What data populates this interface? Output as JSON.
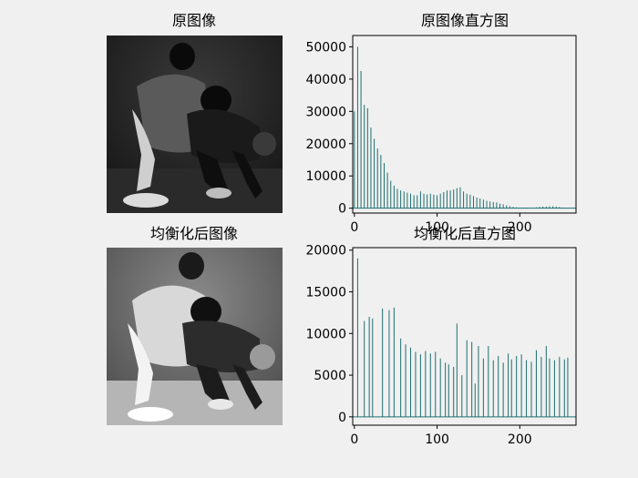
{
  "figure": {
    "background": "#f0f0f0",
    "bar_color": "#1f6f6f"
  },
  "images": [
    {
      "title": "原图像",
      "description_icon": "basketball-photo-dark"
    },
    {
      "title": "均衡化后图像",
      "description_icon": "basketball-photo-equalized"
    }
  ],
  "chart_data": [
    {
      "type": "bar",
      "title": "原图像直方图",
      "xlim": [
        -2,
        268
      ],
      "ylim": [
        -1500,
        53500
      ],
      "xticks": [
        0,
        100,
        200
      ],
      "yticks": [
        0,
        10000,
        20000,
        30000,
        40000,
        50000
      ],
      "x": [
        0,
        4,
        8,
        12,
        16,
        20,
        24,
        28,
        32,
        36,
        40,
        44,
        48,
        52,
        56,
        60,
        64,
        68,
        72,
        76,
        80,
        84,
        88,
        92,
        96,
        100,
        104,
        108,
        112,
        116,
        120,
        124,
        128,
        132,
        136,
        140,
        144,
        148,
        152,
        156,
        160,
        164,
        168,
        172,
        176,
        180,
        184,
        188,
        192,
        196,
        200,
        204,
        208,
        212,
        216,
        220,
        224,
        228,
        232,
        236,
        240,
        244,
        248,
        252,
        256
      ],
      "values": [
        30000,
        50000,
        42500,
        32000,
        31000,
        25000,
        21500,
        18500,
        16500,
        14000,
        11000,
        8500,
        7000,
        6000,
        5500,
        5200,
        4800,
        4500,
        4000,
        4000,
        5200,
        4500,
        4300,
        4500,
        4200,
        4000,
        4500,
        5000,
        5500,
        5500,
        5800,
        6200,
        6500,
        5200,
        4500,
        4200,
        3800,
        3300,
        3000,
        2700,
        2300,
        2100,
        1900,
        1800,
        1400,
        1200,
        900,
        600,
        400,
        300,
        200,
        200,
        150,
        100,
        100,
        300,
        400,
        500,
        500,
        600,
        600,
        500,
        400,
        200,
        100
      ]
    },
    {
      "type": "bar",
      "title": "均衡化后直方图",
      "xlim": [
        -2,
        268
      ],
      "ylim": [
        -1000,
        20300
      ],
      "xticks": [
        0,
        100,
        200
      ],
      "yticks": [
        0,
        5000,
        10000,
        15000,
        20000
      ],
      "x": [
        4,
        12,
        18,
        22,
        34,
        42,
        48,
        56,
        62,
        68,
        74,
        80,
        86,
        92,
        98,
        104,
        110,
        114,
        120,
        124,
        130,
        136,
        142,
        146,
        150,
        156,
        162,
        168,
        174,
        180,
        186,
        190,
        196,
        202,
        208,
        214,
        220,
        226,
        232,
        236,
        242,
        248,
        254,
        258
      ],
      "values": [
        19000,
        11500,
        12000,
        11800,
        13000,
        12800,
        13100,
        9400,
        8700,
        8300,
        7800,
        7500,
        7900,
        7600,
        7800,
        7000,
        6500,
        6300,
        6000,
        11200,
        5000,
        9200,
        9000,
        4000,
        8500,
        7000,
        8500,
        6800,
        7300,
        6500,
        7600,
        6900,
        7300,
        7500,
        6800,
        6600,
        8000,
        7200,
        8500,
        7000,
        6800,
        7200,
        6900,
        7100
      ]
    }
  ]
}
